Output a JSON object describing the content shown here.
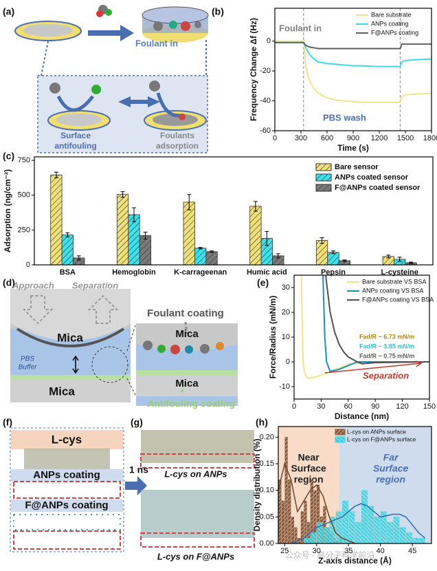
{
  "panels": {
    "labels": [
      "(a)",
      "(b)",
      "(c)",
      "(d)",
      "(e)",
      "(f)",
      "(g)",
      "(h)"
    ]
  },
  "diagram_a": {
    "foulant_in": "Foulant in",
    "surface_antifouling": [
      "Surface",
      "antifouling"
    ],
    "foulants_adsorption": [
      "Foulants",
      "adsorption"
    ]
  },
  "diagram_d": {
    "approach": "Approach",
    "separation": "Separation",
    "mica_top": "Mica",
    "pbs_buffer": [
      "PBS",
      "Buffer"
    ],
    "mica_bottom": "Mica",
    "foulant_coating": "Foulant coating",
    "zoom_mica_top": "Mica",
    "zoom_mica_bottom": "Mica",
    "antifouling_coating": "Antifouling coating"
  },
  "diagram_f": {
    "l_cys": "L-cys",
    "anps_coating": "ANPs coating",
    "f_anps_coating": "F@ANPs coating",
    "time": "1 ns"
  },
  "diagram_g": {
    "l_cys_on_anps": "L-cys on ANPs",
    "l_cys_on_f_anps": "L-cys on F@ANPs"
  },
  "watermark": "公众号 · 高分子科学前沿",
  "chart_data": [
    {
      "type": "line",
      "x_label": "Time (s)",
      "y_label": "Frequency Change Δf (Hz)",
      "x": [
        0,
        330,
        360,
        400,
        450,
        500,
        600,
        700,
        800,
        900,
        1000,
        1200,
        1440,
        1460,
        1500,
        1600,
        1800
      ],
      "xlim": [
        0,
        1800
      ],
      "xticks": [
        0,
        300,
        600,
        900,
        1200,
        1500,
        1800
      ],
      "ylim": [
        -60,
        22
      ],
      "yticks": [
        -60,
        -40,
        -20,
        0
      ],
      "vlines": [
        330,
        1440
      ],
      "legend": "upper right",
      "annotations": [
        {
          "text": "Foulant in",
          "color": "#808080"
        },
        {
          "text": "PBS wash",
          "color": "#4a6fb0"
        }
      ],
      "series": [
        {
          "name": "Bare substrate",
          "color": "#eee58a",
          "values": [
            0,
            0,
            -18,
            -27,
            -32,
            -35,
            -38,
            -39.5,
            -40,
            -40.5,
            -41,
            -41,
            -41,
            -37,
            -36,
            -35.5,
            -35
          ]
        },
        {
          "name": "ANPs coating",
          "color": "#3fd8e8",
          "values": [
            -1,
            -1,
            -5,
            -9,
            -12,
            -14,
            -15,
            -15.5,
            -16,
            -16.5,
            -16.5,
            -17,
            -17,
            -14,
            -13,
            -12.5,
            -12
          ]
        },
        {
          "name": "F@ANPs coating",
          "color": "#606060",
          "values": [
            -1,
            -1,
            -3,
            -4,
            -4.5,
            -5,
            -5,
            -5,
            -5,
            -5,
            -5,
            -5,
            -5,
            -2,
            -2,
            -2,
            -2
          ]
        }
      ]
    },
    {
      "type": "bar",
      "y_label": "Adsorption (ng/cm⁻²)",
      "categories": [
        "BSA",
        "Hemoglobin",
        "K-carrageenan",
        "Humic acid",
        "Pepsin",
        "L-cysteine"
      ],
      "ylim": [
        0,
        775
      ],
      "yticks": [
        0,
        250,
        500,
        750
      ],
      "legend": "upper right",
      "series": [
        {
          "name": "Bare sensor",
          "color": "#f0e07a",
          "values": [
            645,
            505,
            450,
            420,
            175,
            60
          ],
          "errors": [
            20,
            20,
            55,
            35,
            20,
            10
          ]
        },
        {
          "name": "ANPs coated sensor",
          "color": "#3fe0ea",
          "values": [
            215,
            360,
            120,
            190,
            90,
            40
          ],
          "errors": [
            15,
            50,
            5,
            50,
            10,
            15
          ]
        },
        {
          "name": "F@ANPs coated sensor",
          "color": "#7a7a7a",
          "values": [
            50,
            210,
            95,
            65,
            30,
            15
          ],
          "errors": [
            15,
            25,
            5,
            15,
            5,
            5
          ]
        }
      ]
    },
    {
      "type": "line",
      "x_label": "Distance (nm)",
      "y_label": "Force/Radius (mN/m)",
      "xlim": [
        0,
        150
      ],
      "xticks": [
        0,
        30,
        60,
        90,
        120,
        150
      ],
      "ylim": [
        -15,
        35
      ],
      "yticks": [
        -10,
        0,
        10,
        20,
        30
      ],
      "legend": "upper right",
      "annotations": [
        {
          "text": "Fad/R ~ 6.73 mN/m",
          "color": "#b8860b"
        },
        {
          "text": "Fad/R ~ 3.85 mN/m",
          "color": "#2ec4d6"
        },
        {
          "text": "Fad/R ~ 0.75 mN/m",
          "color": "#606060"
        },
        {
          "text": "Separation",
          "color": "#c0392b"
        }
      ],
      "series": [
        {
          "name": "Bare substrate VS BSA",
          "color": "#eee58a",
          "x": [
            8,
            10,
            12,
            15,
            25,
            40,
            60,
            80,
            150
          ],
          "values": [
            35,
            0,
            -5,
            -6.73,
            -6,
            -4,
            -1,
            0,
            0
          ]
        },
        {
          "name": "ANPs coating VS BSA",
          "color": "#1a8fb5",
          "x": [
            32,
            34,
            36,
            40,
            50,
            60,
            70,
            150
          ],
          "values": [
            35,
            10,
            0,
            -3.85,
            -3,
            -1.5,
            0,
            0
          ]
        },
        {
          "name": "F@ANPs coating VS BSA",
          "color": "#505050",
          "x": [
            35,
            40,
            45,
            50,
            55,
            60,
            65,
            70,
            75,
            90,
            150
          ],
          "values": [
            35,
            20,
            12,
            7,
            4,
            2,
            1,
            0,
            -0.75,
            -0.3,
            0
          ]
        }
      ]
    },
    {
      "type": "histogram",
      "x_label": "Z-axis distance (Å)",
      "y_label": "Density distribution (%)",
      "xlim": [
        24,
        48
      ],
      "xticks": [
        25,
        30,
        35,
        40,
        45
      ],
      "ylim": [
        0,
        0.22
      ],
      "yticks": [
        {
          "value": 0,
          "label": "0.00"
        },
        0.05,
        {
          "value": 0.1,
          "label": "0.10"
        },
        0.15,
        {
          "value": 0.2,
          "label": "0.20"
        }
      ],
      "legend": "upper right",
      "regions": [
        {
          "label": [
            "Near",
            "Surface",
            "region"
          ],
          "range": [
            24,
            33.5
          ],
          "color": "#f8dcc8",
          "text_color": "#222222"
        },
        {
          "label": [
            "Far",
            "Surface",
            "region"
          ],
          "range": [
            33.5,
            48
          ],
          "color": "#cfdcee",
          "text_color": "#4a6fb0"
        }
      ],
      "series": [
        {
          "name": "L-cys on ANPs surface",
          "color": "#8b5a3c",
          "bins": [
            24,
            24.5,
            25,
            25.5,
            26,
            26.5,
            27,
            27.5,
            28,
            28.5,
            29,
            29.5,
            30,
            30.5,
            31,
            31.5,
            32,
            32.5,
            33,
            33.5,
            34
          ],
          "values": [
            0.12,
            0.08,
            0.2,
            0.12,
            0.05,
            0.03,
            0.01,
            0.06,
            0.08,
            0.04,
            0.12,
            0.1,
            0.11,
            0.05,
            0.07,
            0.03,
            0.02,
            0.01,
            0.005,
            0.01
          ],
          "line_x": [
            24,
            25,
            26,
            27,
            28,
            29,
            30,
            31,
            32,
            33,
            34,
            35,
            36
          ],
          "line_values": [
            0.1,
            0.15,
            0.12,
            0.06,
            0.08,
            0.1,
            0.11,
            0.09,
            0.05,
            0.02,
            0.01,
            0.005,
            0
          ]
        },
        {
          "name": "L-cys on F@ANPs surface",
          "color": "#3fd0dc",
          "bins": [
            28,
            29,
            30,
            31,
            32,
            33,
            34,
            35,
            36,
            37,
            38,
            39,
            40,
            41,
            42,
            43,
            44,
            45,
            46,
            47
          ],
          "values": [
            0.01,
            0.02,
            0.04,
            0.03,
            0.05,
            0.06,
            0.08,
            0.06,
            0.04,
            0.1,
            0.07,
            0.05,
            0.06,
            0.04,
            0.05,
            0.03,
            0.02,
            0.01,
            0.01
          ],
          "line_x": [
            26,
            28,
            30,
            32,
            34,
            36,
            37,
            38,
            40,
            42,
            43,
            44,
            46,
            47
          ],
          "line_values": [
            0,
            0.01,
            0.03,
            0.04,
            0.05,
            0.07,
            0.075,
            0.07,
            0.05,
            0.055,
            0.055,
            0.05,
            0.02,
            0.01
          ]
        }
      ]
    }
  ]
}
